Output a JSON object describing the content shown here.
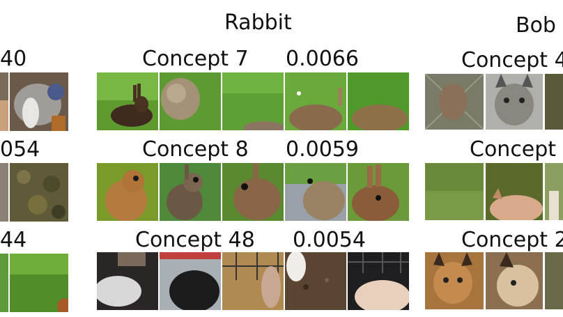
{
  "panels": {
    "left": {
      "rows": [
        {
          "score_fragment": "40"
        },
        {
          "score_fragment": "054"
        },
        {
          "score_fragment": "44"
        }
      ]
    },
    "center": {
      "title": "Rabbit",
      "rows": [
        {
          "concept": "Concept 7",
          "score": "0.0066"
        },
        {
          "concept": "Concept 8",
          "score": "0.0059"
        },
        {
          "concept": "Concept 48",
          "score": "0.0054"
        }
      ]
    },
    "right": {
      "title_fragment": "Bob",
      "rows": [
        {
          "concept_fragment": "Concept 4"
        },
        {
          "concept_fragment": "Concept"
        },
        {
          "concept_fragment": "Concept 2"
        }
      ]
    }
  },
  "colors": {
    "grass": "#4f8f2a",
    "grass_light": "#6fae3a",
    "rabbit_brown": "#8a6a45",
    "rabbit_dark": "#5b4330",
    "lynx_gray": "#9c9a93",
    "lynx_tan": "#c79a6b"
  }
}
